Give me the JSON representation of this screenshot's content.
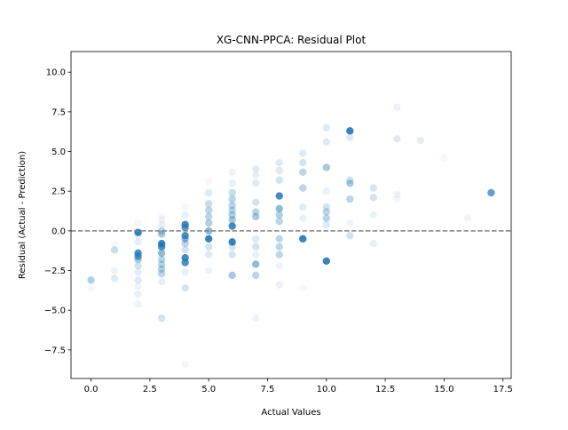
{
  "chart_data": {
    "type": "scatter",
    "title": "XG-CNN-PPCA: Residual Plot",
    "xlabel": "Actual Values",
    "ylabel": "Residual (Actual - Prediction)",
    "xlim": [
      -0.85,
      17.85
    ],
    "ylim": [
      -9.3,
      11.3
    ],
    "xticks": [
      0.0,
      2.5,
      5.0,
      7.5,
      10.0,
      12.5,
      15.0,
      17.5
    ],
    "xtick_labels": [
      "0.0",
      "2.5",
      "5.0",
      "7.5",
      "10.0",
      "12.5",
      "15.0",
      "17.5"
    ],
    "yticks": [
      -7.5,
      -5.0,
      -2.5,
      0.0,
      2.5,
      5.0,
      7.5,
      10.0
    ],
    "ytick_labels": [
      "−7.5",
      "−5.0",
      "−2.5",
      "0.0",
      "2.5",
      "5.0",
      "7.5",
      "10.0"
    ],
    "reference_line": {
      "y": 0,
      "style": "dashed",
      "color": "#808080"
    },
    "grid": false,
    "legend": "none",
    "point_color": "#1f77b4",
    "points": [
      {
        "x": 0,
        "y": -3.1,
        "a": 0.35
      },
      {
        "x": 0,
        "y": -3.6,
        "a": 0.05
      },
      {
        "x": 1,
        "y": -1.2,
        "a": 0.25
      },
      {
        "x": 1,
        "y": -3.0,
        "a": 0.15
      },
      {
        "x": 1,
        "y": -2.5,
        "a": 0.08
      },
      {
        "x": 1,
        "y": -0.8,
        "a": 0.05
      },
      {
        "x": 2,
        "y": -0.1,
        "a": 0.9
      },
      {
        "x": 2,
        "y": -1.4,
        "a": 0.8
      },
      {
        "x": 2,
        "y": -1.6,
        "a": 0.7
      },
      {
        "x": 2,
        "y": -1.8,
        "a": 0.4
      },
      {
        "x": 2,
        "y": -2.2,
        "a": 0.2
      },
      {
        "x": 2,
        "y": -2.6,
        "a": 0.12
      },
      {
        "x": 2,
        "y": -3.1,
        "a": 0.15
      },
      {
        "x": 2,
        "y": -3.5,
        "a": 0.08
      },
      {
        "x": 2,
        "y": -4.0,
        "a": 0.1
      },
      {
        "x": 2,
        "y": -4.6,
        "a": 0.08
      },
      {
        "x": 2,
        "y": -0.7,
        "a": 0.12
      },
      {
        "x": 2,
        "y": -0.3,
        "a": 0.08
      },
      {
        "x": 2,
        "y": 0.5,
        "a": 0.05
      },
      {
        "x": 3,
        "y": -0.8,
        "a": 0.9
      },
      {
        "x": 3,
        "y": -1.0,
        "a": 0.8
      },
      {
        "x": 3,
        "y": -1.4,
        "a": 0.5
      },
      {
        "x": 3,
        "y": -0.2,
        "a": 0.4
      },
      {
        "x": 3,
        "y": 0.0,
        "a": 0.3
      },
      {
        "x": 3,
        "y": -1.8,
        "a": 0.3
      },
      {
        "x": 3,
        "y": -2.1,
        "a": 0.3
      },
      {
        "x": 3,
        "y": -2.4,
        "a": 0.35
      },
      {
        "x": 3,
        "y": -2.7,
        "a": 0.3
      },
      {
        "x": 3,
        "y": -3.2,
        "a": 0.1
      },
      {
        "x": 3,
        "y": -5.5,
        "a": 0.2
      },
      {
        "x": 3,
        "y": 0.4,
        "a": 0.1
      },
      {
        "x": 3,
        "y": 0.7,
        "a": 0.06
      },
      {
        "x": 3,
        "y": 0.9,
        "a": 0.05
      },
      {
        "x": 4,
        "y": 0.4,
        "a": 0.85
      },
      {
        "x": 4,
        "y": 0.2,
        "a": 0.7
      },
      {
        "x": 4,
        "y": -0.3,
        "a": 0.8
      },
      {
        "x": 4,
        "y": -0.5,
        "a": 0.5
      },
      {
        "x": 4,
        "y": -0.8,
        "a": 0.3
      },
      {
        "x": 4,
        "y": -1.7,
        "a": 0.85
      },
      {
        "x": 4,
        "y": -2.0,
        "a": 0.8
      },
      {
        "x": 4,
        "y": -1.2,
        "a": 0.2
      },
      {
        "x": 4,
        "y": -2.6,
        "a": 0.1
      },
      {
        "x": 4,
        "y": -3.6,
        "a": 0.2
      },
      {
        "x": 4,
        "y": 1.0,
        "a": 0.1
      },
      {
        "x": 4,
        "y": 1.5,
        "a": 0.05
      },
      {
        "x": 4,
        "y": -8.4,
        "a": 0.06
      },
      {
        "x": 5,
        "y": -0.5,
        "a": 0.9
      },
      {
        "x": 5,
        "y": 0.0,
        "a": 0.5
      },
      {
        "x": 5,
        "y": 0.5,
        "a": 0.35
      },
      {
        "x": 5,
        "y": 0.9,
        "a": 0.3
      },
      {
        "x": 5,
        "y": 1.3,
        "a": 0.3
      },
      {
        "x": 5,
        "y": 1.7,
        "a": 0.25
      },
      {
        "x": 5,
        "y": 2.4,
        "a": 0.15
      },
      {
        "x": 5,
        "y": -1.0,
        "a": 0.2
      },
      {
        "x": 5,
        "y": -1.5,
        "a": 0.15
      },
      {
        "x": 5,
        "y": -2.5,
        "a": 0.08
      },
      {
        "x": 5,
        "y": 3.1,
        "a": 0.05
      },
      {
        "x": 6,
        "y": -0.7,
        "a": 0.9
      },
      {
        "x": 6,
        "y": 0.3,
        "a": 0.85
      },
      {
        "x": 6,
        "y": 0.7,
        "a": 0.4
      },
      {
        "x": 6,
        "y": 1.0,
        "a": 0.35
      },
      {
        "x": 6,
        "y": 1.3,
        "a": 0.3
      },
      {
        "x": 6,
        "y": 1.6,
        "a": 0.3
      },
      {
        "x": 6,
        "y": 2.0,
        "a": 0.3
      },
      {
        "x": 6,
        "y": 2.4,
        "a": 0.25
      },
      {
        "x": 6,
        "y": -2.8,
        "a": 0.4
      },
      {
        "x": 6,
        "y": -1.5,
        "a": 0.2
      },
      {
        "x": 6,
        "y": -1.0,
        "a": 0.2
      },
      {
        "x": 6,
        "y": 3.0,
        "a": 0.1
      },
      {
        "x": 6,
        "y": 3.7,
        "a": 0.08
      },
      {
        "x": 7,
        "y": -2.1,
        "a": 0.5
      },
      {
        "x": 7,
        "y": -2.8,
        "a": 0.3
      },
      {
        "x": 7,
        "y": 0.9,
        "a": 0.4
      },
      {
        "x": 7,
        "y": 1.2,
        "a": 0.3
      },
      {
        "x": 7,
        "y": 1.8,
        "a": 0.2
      },
      {
        "x": 7,
        "y": 3.0,
        "a": 0.15
      },
      {
        "x": 7,
        "y": 3.5,
        "a": 0.1
      },
      {
        "x": 7,
        "y": 3.9,
        "a": 0.15
      },
      {
        "x": 7,
        "y": -0.5,
        "a": 0.15
      },
      {
        "x": 7,
        "y": -1.0,
        "a": 0.2
      },
      {
        "x": 7,
        "y": -1.5,
        "a": 0.1
      },
      {
        "x": 7,
        "y": -5.5,
        "a": 0.08
      },
      {
        "x": 8,
        "y": 2.2,
        "a": 0.85
      },
      {
        "x": 8,
        "y": 1.4,
        "a": 0.5
      },
      {
        "x": 8,
        "y": 1.0,
        "a": 0.35
      },
      {
        "x": 8,
        "y": 0.6,
        "a": 0.3
      },
      {
        "x": 8,
        "y": -0.5,
        "a": 0.3
      },
      {
        "x": 8,
        "y": -1.0,
        "a": 0.3
      },
      {
        "x": 8,
        "y": -1.5,
        "a": 0.3
      },
      {
        "x": 8,
        "y": 3.2,
        "a": 0.2
      },
      {
        "x": 8,
        "y": 3.8,
        "a": 0.15
      },
      {
        "x": 8,
        "y": 4.3,
        "a": 0.15
      },
      {
        "x": 8,
        "y": -2.2,
        "a": 0.08
      },
      {
        "x": 8,
        "y": -3.4,
        "a": 0.1
      },
      {
        "x": 9,
        "y": -0.5,
        "a": 0.9
      },
      {
        "x": 9,
        "y": 2.7,
        "a": 0.3
      },
      {
        "x": 9,
        "y": 3.7,
        "a": 0.3
      },
      {
        "x": 9,
        "y": 4.3,
        "a": 0.2
      },
      {
        "x": 9,
        "y": 4.9,
        "a": 0.15
      },
      {
        "x": 9,
        "y": 1.5,
        "a": 0.15
      },
      {
        "x": 9,
        "y": 0.8,
        "a": 0.1
      },
      {
        "x": 9,
        "y": -3.6,
        "a": 0.05
      },
      {
        "x": 10,
        "y": -1.9,
        "a": 0.9
      },
      {
        "x": 10,
        "y": 4.0,
        "a": 0.4
      },
      {
        "x": 10,
        "y": 6.5,
        "a": 0.15
      },
      {
        "x": 10,
        "y": 5.6,
        "a": 0.15
      },
      {
        "x": 10,
        "y": 1.2,
        "a": 0.3
      },
      {
        "x": 10,
        "y": 0.8,
        "a": 0.3
      },
      {
        "x": 10,
        "y": 1.5,
        "a": 0.2
      },
      {
        "x": 10,
        "y": 0.4,
        "a": 0.15
      },
      {
        "x": 10,
        "y": 2.5,
        "a": 0.1
      },
      {
        "x": 11,
        "y": 6.3,
        "a": 0.9
      },
      {
        "x": 11,
        "y": 3.0,
        "a": 0.4
      },
      {
        "x": 11,
        "y": 2.0,
        "a": 0.3
      },
      {
        "x": 11,
        "y": 3.2,
        "a": 0.2
      },
      {
        "x": 11,
        "y": -0.3,
        "a": 0.2
      },
      {
        "x": 11,
        "y": 5.9,
        "a": 0.15
      },
      {
        "x": 11,
        "y": 0.5,
        "a": 0.08
      },
      {
        "x": 12,
        "y": 2.7,
        "a": 0.2
      },
      {
        "x": 12,
        "y": 2.1,
        "a": 0.2
      },
      {
        "x": 12,
        "y": -0.8,
        "a": 0.1
      },
      {
        "x": 12,
        "y": 1.0,
        "a": 0.08
      },
      {
        "x": 13,
        "y": 5.8,
        "a": 0.15
      },
      {
        "x": 13,
        "y": 7.8,
        "a": 0.08
      },
      {
        "x": 13,
        "y": 2.3,
        "a": 0.08
      },
      {
        "x": 13,
        "y": 2.0,
        "a": 0.05
      },
      {
        "x": 14,
        "y": 5.7,
        "a": 0.12
      },
      {
        "x": 15,
        "y": 4.6,
        "a": 0.05
      },
      {
        "x": 16,
        "y": 0.8,
        "a": 0.08
      },
      {
        "x": 17,
        "y": 2.4,
        "a": 0.7
      }
    ]
  }
}
